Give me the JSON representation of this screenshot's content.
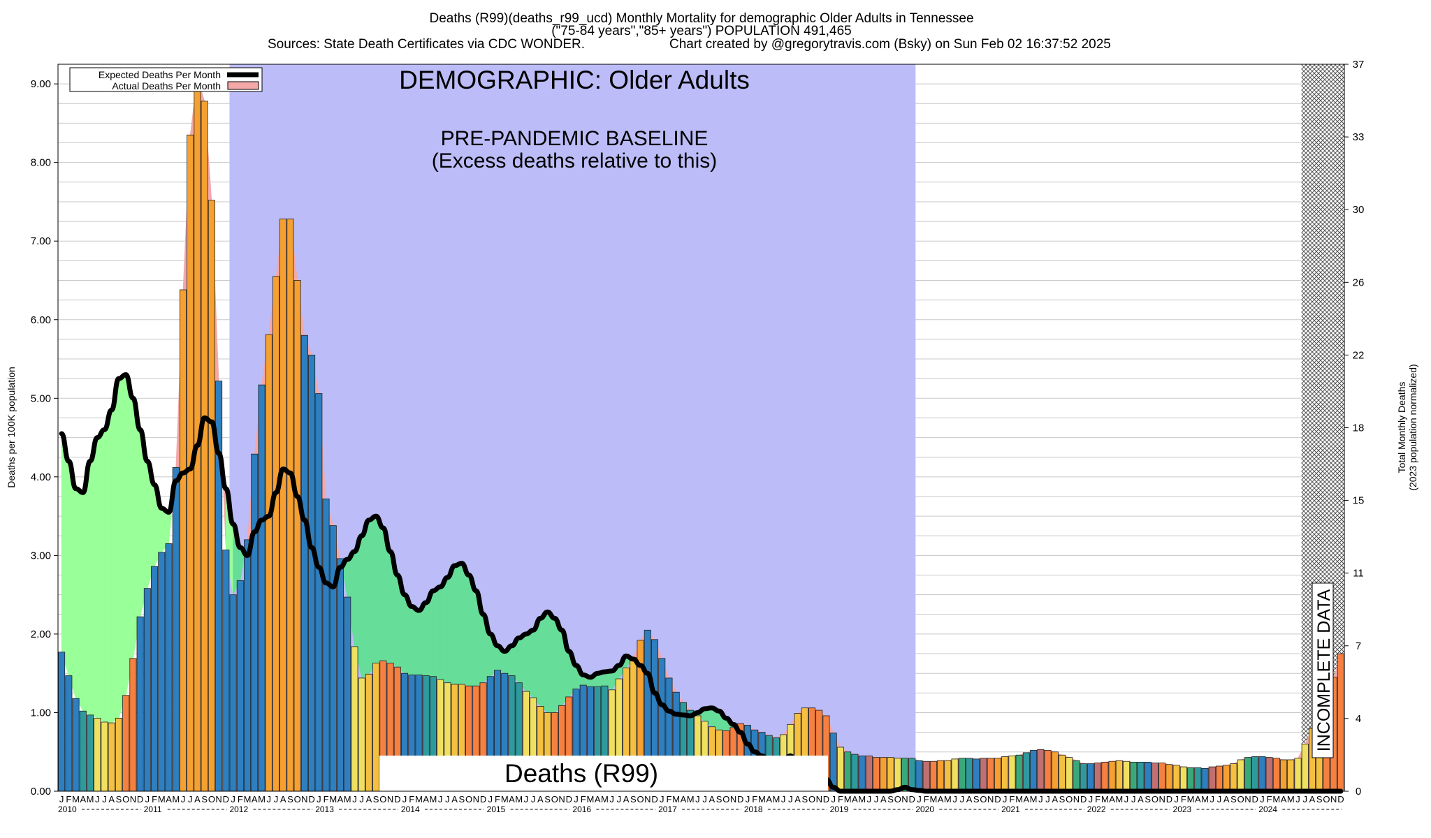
{
  "header": {
    "title_line1": "Deaths (R99)(deaths_r99_ucd) Monthly Mortality for demographic Older Adults in Tennessee",
    "title_line2": "(\"75-84 years\",\"85+ years\") POPULATION 491,465",
    "title_line3a": "Sources: State Death Certificates via CDC WONDER.",
    "title_line3b": "Chart created by @gregorytravis.com (Bsky) on Sun Feb 02 16:37:52 2025"
  },
  "annotations": {
    "demographic": "DEMOGRAPHIC: Older Adults",
    "baseline_line1": "PRE-PANDEMIC BASELINE",
    "baseline_line2": "(Excess deaths relative to this)",
    "cause_label": "Deaths (R99)",
    "incomplete": "INCOMPLETE DATA"
  },
  "legend": {
    "expected_label": "Expected Deaths Per Month",
    "actual_label": "Actual Deaths Per Month"
  },
  "axes": {
    "ylabel_left": "Deaths per 100K population",
    "ylabel_right_line1": "Total Monthly Deaths",
    "ylabel_right_line2": "(2023 population normalized)"
  },
  "colors": {
    "baseline_shade": "#bcbcf8",
    "excess_fill": "#66dd99",
    "deficit_fill": "#99ff99",
    "actual_area": "#f4a8a8",
    "expected_line": "#000000",
    "bar_palette": [
      "#2e7fc0",
      "#2e9a9e",
      "#3aa97a",
      "#f0e060",
      "#f5c040",
      "#f5a030",
      "#f58040",
      "#c07070"
    ]
  },
  "chart_data": {
    "type": "bar",
    "start": "2010-01",
    "frequency": "monthly",
    "month_letters": [
      "J",
      "F",
      "M",
      "A",
      "M",
      "J",
      "J",
      "A",
      "S",
      "O",
      "N",
      "D"
    ],
    "years": [
      "2010",
      "2011",
      "2012",
      "2013",
      "2014",
      "2015",
      "2016",
      "2017",
      "2018",
      "2019",
      "2020",
      "2021",
      "2022",
      "2023",
      "2024"
    ],
    "ylim": [
      0,
      9.25
    ],
    "yticks": [
      "0.00",
      "1.00",
      "2.00",
      "3.00",
      "4.00",
      "5.00",
      "6.00",
      "7.00",
      "8.00",
      "9.00"
    ],
    "y2ticks": [
      "0",
      "4",
      "7",
      "11",
      "15",
      "18",
      "22",
      "26",
      "30",
      "33",
      "37"
    ],
    "baseline_period": [
      "2012-01",
      "2019-12"
    ],
    "incomplete_from": "2024-07",
    "series": [
      {
        "name": "Actual Deaths Per Month",
        "values": [
          1.77,
          1.47,
          1.18,
          1.02,
          0.97,
          0.93,
          0.88,
          0.87,
          0.93,
          1.22,
          1.69,
          2.22,
          2.58,
          2.86,
          3.04,
          3.15,
          4.12,
          6.38,
          8.35,
          9.1,
          8.78,
          7.52,
          5.22,
          3.07,
          2.5,
          2.68,
          3.2,
          4.29,
          5.17,
          5.81,
          6.55,
          7.28,
          7.28,
          6.5,
          5.8,
          5.55,
          5.06,
          3.72,
          3.38,
          2.96,
          2.47,
          1.84,
          1.44,
          1.49,
          1.63,
          1.66,
          1.63,
          1.58,
          1.5,
          1.48,
          1.48,
          1.47,
          1.46,
          1.42,
          1.38,
          1.36,
          1.36,
          1.34,
          1.34,
          1.38,
          1.46,
          1.54,
          1.5,
          1.47,
          1.38,
          1.27,
          1.19,
          1.08,
          1.0,
          1.0,
          1.09,
          1.2,
          1.3,
          1.35,
          1.33,
          1.33,
          1.34,
          1.29,
          1.43,
          1.57,
          1.7,
          1.92,
          2.05,
          1.93,
          1.69,
          1.44,
          1.26,
          1.13,
          1.03,
          0.96,
          0.89,
          0.82,
          0.78,
          0.77,
          0.81,
          0.86,
          0.84,
          0.78,
          0.75,
          0.71,
          0.68,
          0.72,
          0.85,
          0.99,
          1.06,
          1.06,
          1.03,
          0.96,
          0.74,
          0.56,
          0.5,
          0.47,
          0.45,
          0.45,
          0.43,
          0.43,
          0.43,
          0.42,
          0.42,
          0.42,
          0.39,
          0.38,
          0.38,
          0.39,
          0.39,
          0.41,
          0.42,
          0.42,
          0.41,
          0.42,
          0.42,
          0.42,
          0.44,
          0.45,
          0.46,
          0.49,
          0.52,
          0.53,
          0.52,
          0.5,
          0.46,
          0.43,
          0.39,
          0.35,
          0.35,
          0.36,
          0.37,
          0.38,
          0.39,
          0.38,
          0.37,
          0.37,
          0.37,
          0.36,
          0.36,
          0.34,
          0.33,
          0.31,
          0.3,
          0.3,
          0.29,
          0.31,
          0.32,
          0.33,
          0.35,
          0.4,
          0.43,
          0.44,
          0.44,
          0.43,
          0.42,
          0.4,
          0.4,
          0.42,
          0.6,
          0.8,
          1.05,
          1.25,
          1.45,
          1.75
        ]
      },
      {
        "name": "Expected Deaths Per Month",
        "values": [
          4.55,
          4.2,
          3.85,
          3.8,
          4.2,
          4.5,
          4.6,
          4.85,
          5.25,
          5.3,
          5.0,
          4.6,
          4.2,
          3.9,
          3.6,
          3.55,
          3.95,
          4.05,
          4.1,
          4.4,
          4.75,
          4.7,
          4.3,
          3.85,
          3.4,
          3.1,
          3.0,
          3.3,
          3.45,
          3.5,
          3.8,
          4.1,
          4.05,
          3.75,
          3.45,
          3.1,
          2.85,
          2.65,
          2.6,
          2.85,
          2.95,
          3.05,
          3.25,
          3.45,
          3.5,
          3.35,
          3.05,
          2.75,
          2.5,
          2.35,
          2.3,
          2.4,
          2.55,
          2.6,
          2.72,
          2.87,
          2.9,
          2.75,
          2.55,
          2.25,
          2.0,
          1.85,
          1.78,
          1.85,
          1.95,
          2.0,
          2.05,
          2.2,
          2.28,
          2.2,
          2.05,
          1.78,
          1.6,
          1.48,
          1.45,
          1.5,
          1.52,
          1.53,
          1.6,
          1.72,
          1.68,
          1.6,
          1.5,
          1.25,
          1.1,
          1.02,
          0.98,
          0.97,
          0.96,
          1.0,
          1.05,
          1.06,
          1.02,
          0.93,
          0.85,
          0.75,
          0.6,
          0.5,
          0.45,
          0.4,
          0.37,
          0.4,
          0.45,
          0.3,
          0.35,
          0.38,
          0.25,
          0.15,
          0.05,
          0.0,
          0.0,
          0.0,
          0.0,
          0.0,
          0.0,
          0.0,
          0.0,
          0.02,
          0.05,
          0.02,
          0.01,
          0.0,
          0.0,
          0.0,
          0.0,
          0.0,
          0.0,
          0.0,
          0.0,
          0.0,
          0.0,
          0.0,
          0.0,
          0.0,
          0.0,
          0.0,
          0.0,
          0.0,
          0.0,
          0.0,
          0.0,
          0.0,
          0.0,
          0.0,
          0.0,
          0.0,
          0.0,
          0.0,
          0.0,
          0.0,
          0.0,
          0.0,
          0.0,
          0.0,
          0.0,
          0.0,
          0.0,
          0.0,
          0.0,
          0.0,
          0.0,
          0.0,
          0.0,
          0.0,
          0.0,
          0.0,
          0.0,
          0.0,
          0.0,
          0.0,
          0.0,
          0.0,
          0.0,
          0.0,
          0.0,
          0.0,
          0.0,
          0.0,
          0.0,
          0.0
        ]
      }
    ]
  }
}
